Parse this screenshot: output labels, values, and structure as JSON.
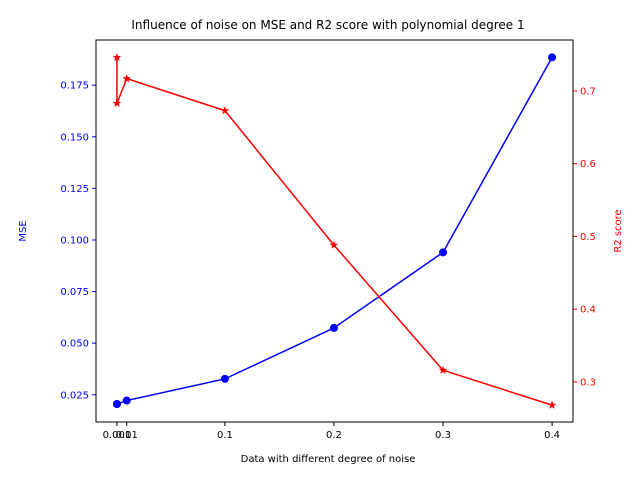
{
  "chart_data": {
    "type": "line",
    "title": "Influence of noise on MSE and R2 score with polynomial degree 1",
    "xlabel": "Data with different degree of noise",
    "y_left_label": "MSE",
    "y_right_label": "R2 score",
    "x": [
      0.001,
      0.01,
      0.1,
      0.2,
      0.3,
      0.4
    ],
    "x_ticks": [
      0.001,
      0.01,
      0.1,
      0.2,
      0.3,
      0.4
    ],
    "x_tick_labels": [
      "0.001",
      "0.01",
      "0.1",
      "0.2",
      "0.3",
      "0.4"
    ],
    "xlim": [
      -0.0182,
      0.4192
    ],
    "ylim_left": [
      0.0118,
      0.1969
    ],
    "ylim_right": [
      0.2448,
      0.7701
    ],
    "y_left_ticks": [
      0.025,
      0.05,
      0.075,
      0.1,
      0.125,
      0.15,
      0.175
    ],
    "y_left_tick_labels": [
      "0.025",
      "0.050",
      "0.075",
      "0.100",
      "0.125",
      "0.150",
      "0.175"
    ],
    "y_right_ticks": [
      0.3,
      0.4,
      0.5,
      0.6,
      0.7
    ],
    "y_right_tick_labels": [
      "0.3",
      "0.4",
      "0.5",
      "0.6",
      "0.7"
    ],
    "grid": false,
    "series": [
      {
        "key": "mse",
        "axis": "left",
        "color": "#0000ff",
        "marker": "circle",
        "x": [
          0.001,
          0.001,
          0.01,
          0.1,
          0.2,
          0.3,
          0.4
        ],
        "values": [
          0.0205,
          0.0205,
          0.0222,
          0.0327,
          0.0574,
          0.094,
          0.1885
        ]
      },
      {
        "key": "r2",
        "axis": "right",
        "color": "#ff0000",
        "marker": "star",
        "x": [
          0.001,
          0.001,
          0.01,
          0.1,
          0.2,
          0.3,
          0.4
        ],
        "values": [
          0.746,
          0.683,
          0.717,
          0.673,
          0.488,
          0.316,
          0.268
        ]
      }
    ]
  }
}
